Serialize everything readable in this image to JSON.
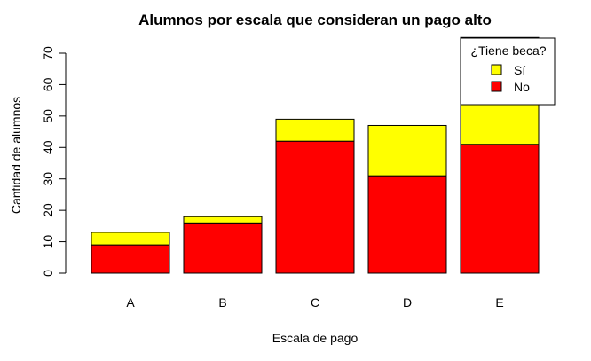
{
  "chart_data": {
    "type": "bar",
    "stacked": true,
    "title": "Alumnos por escala que consideran un pago alto",
    "xlabel": "Escala de pago",
    "ylabel": "Cantidad de alumnos",
    "categories": [
      "A",
      "B",
      "C",
      "D",
      "E"
    ],
    "series": [
      {
        "name": "No",
        "color": "#ff0000",
        "values": [
          9,
          16,
          42,
          31,
          41
        ]
      },
      {
        "name": "Sí",
        "color": "#ffff00",
        "values": [
          4,
          2,
          7,
          16,
          34
        ]
      }
    ],
    "ylim": [
      0,
      70
    ],
    "yticks": [
      0,
      10,
      20,
      30,
      40,
      50,
      60,
      70
    ],
    "grid": false,
    "legend": {
      "title": "¿Tiene beca?",
      "position": "top-right",
      "order": [
        "Sí",
        "No"
      ]
    }
  }
}
